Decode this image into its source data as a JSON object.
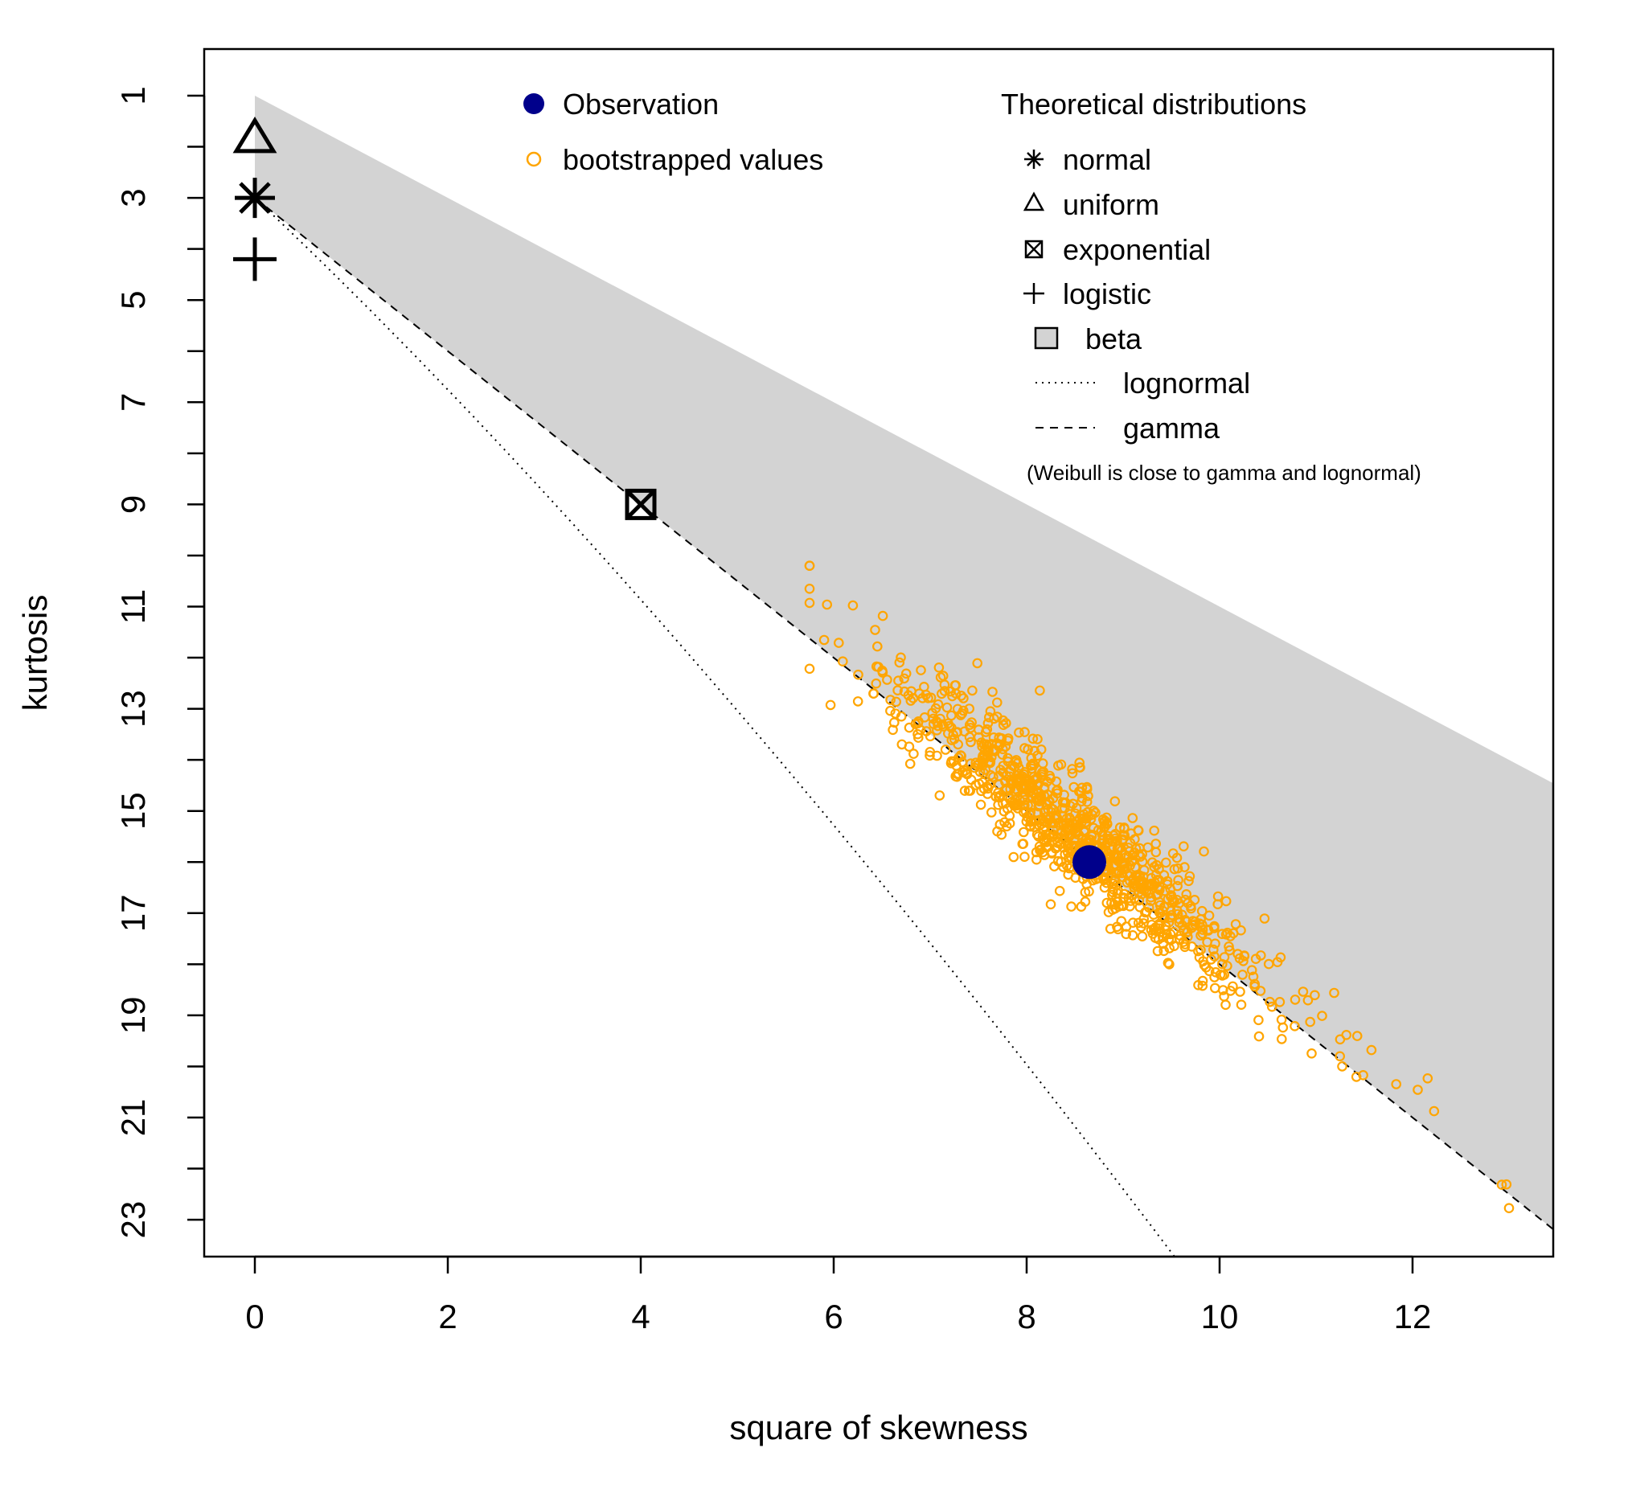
{
  "chart_data": {
    "type": "scatter",
    "title": "",
    "xlabel": "square of skewness",
    "ylabel": "kurtosis",
    "xlim": [
      -0.5,
      13.5
    ],
    "ylim": [
      24.1,
      -0.1
    ],
    "y_axis_inverted": true,
    "x_ticks": [
      "0",
      "2",
      "4",
      "6",
      "8",
      "10",
      "12"
    ],
    "y_ticks": [
      "1",
      "3",
      "5",
      "7",
      "9",
      "11",
      "13",
      "15",
      "17",
      "19",
      "21",
      "23"
    ],
    "grid": false,
    "observation": {
      "x": 8.65,
      "y": 16.0
    },
    "theoretical_points": [
      {
        "name": "normal",
        "x": 0,
        "y": 3
      },
      {
        "name": "uniform",
        "x": 0,
        "y": 1.8
      },
      {
        "name": "exponential",
        "x": 4,
        "y": 9
      },
      {
        "name": "logistic",
        "x": 0,
        "y": 4.2
      }
    ],
    "beta_region": {
      "name": "beta",
      "upper_boundary": "kurtosis = square of skewness + 1",
      "lower_boundary": "gamma line",
      "color": "#d3d3d3"
    },
    "lines": [
      {
        "name": "gamma",
        "style": "dashed",
        "equation": "kurtosis = 3 + 1.5 * square of skewness"
      },
      {
        "name": "lognormal",
        "style": "dotted"
      }
    ],
    "bootstrap": {
      "name": "bootstrapped values",
      "color": "#ffa500",
      "approx_count": 1000,
      "x_range": [
        5.75,
        13.0
      ],
      "y_range": [
        10.2,
        22.9
      ],
      "trend": "follows gamma line",
      "center": {
        "x": 8.4,
        "y": 15.6
      }
    },
    "colors": {
      "observation": "#00008b",
      "bootstrap": "#ffa500",
      "beta": "#d3d3d3"
    },
    "legend": {
      "placement": "top",
      "left": {
        "observation_label": "Observation",
        "bootstrap_label": "bootstrapped values"
      },
      "right": {
        "title": "Theoretical distributions",
        "items": [
          "normal",
          "uniform",
          "exponential",
          "logistic",
          "beta",
          "lognormal",
          "gamma"
        ],
        "note": "(Weibull is close to gamma and lognormal)"
      }
    }
  }
}
